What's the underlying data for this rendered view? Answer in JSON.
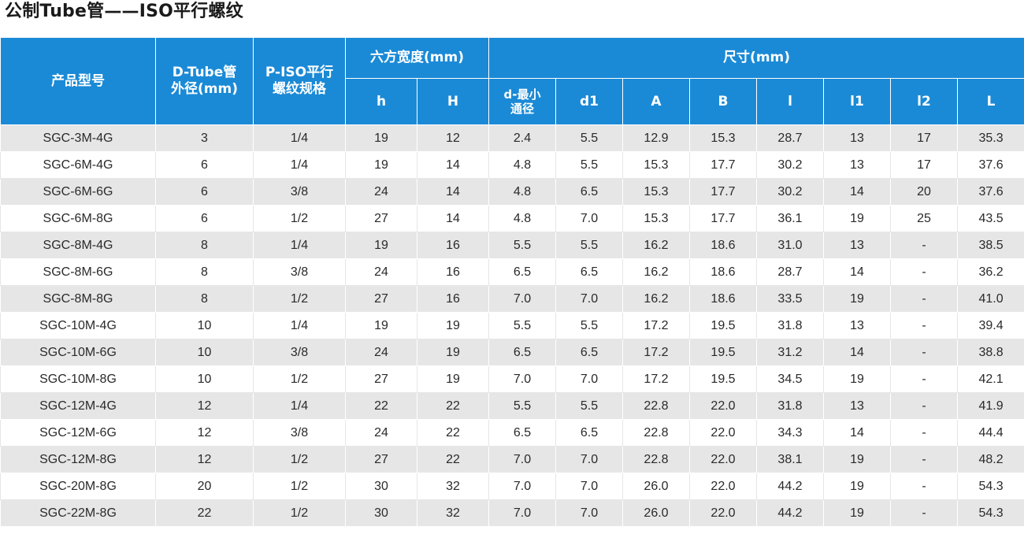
{
  "title": "公制Tube管——ISO平行螺纹",
  "headers": {
    "model": "产品型号",
    "tube_line1": "D-Tube管",
    "tube_line2": "外径(mm)",
    "thread_line1": "P-ISO平行",
    "thread_line2": "螺纹规格",
    "hex_group": "六方宽度(mm)",
    "dims_group": "尺寸(mm)",
    "h": "h",
    "H": "H",
    "d_line1": "d-最小",
    "d_line2": "通径",
    "d1": "d1",
    "A": "A",
    "B": "B",
    "l": "l",
    "l1": "l1",
    "l2": "l2",
    "L": "L"
  },
  "rows": [
    [
      "SGC-3M-4G",
      "3",
      "1/4",
      "19",
      "12",
      "2.4",
      "5.5",
      "12.9",
      "15.3",
      "28.7",
      "13",
      "17",
      "35.3"
    ],
    [
      "SGC-6M-4G",
      "6",
      "1/4",
      "19",
      "14",
      "4.8",
      "5.5",
      "15.3",
      "17.7",
      "30.2",
      "13",
      "17",
      "37.6"
    ],
    [
      "SGC-6M-6G",
      "6",
      "3/8",
      "24",
      "14",
      "4.8",
      "6.5",
      "15.3",
      "17.7",
      "30.2",
      "14",
      "20",
      "37.6"
    ],
    [
      "SGC-6M-8G",
      "6",
      "1/2",
      "27",
      "14",
      "4.8",
      "7.0",
      "15.3",
      "17.7",
      "36.1",
      "19",
      "25",
      "43.5"
    ],
    [
      "SGC-8M-4G",
      "8",
      "1/4",
      "19",
      "16",
      "5.5",
      "5.5",
      "16.2",
      "18.6",
      "31.0",
      "13",
      "-",
      "38.5"
    ],
    [
      "SGC-8M-6G",
      "8",
      "3/8",
      "24",
      "16",
      "6.5",
      "6.5",
      "16.2",
      "18.6",
      "28.7",
      "14",
      "-",
      "36.2"
    ],
    [
      "SGC-8M-8G",
      "8",
      "1/2",
      "27",
      "16",
      "7.0",
      "7.0",
      "16.2",
      "18.6",
      "33.5",
      "19",
      "-",
      "41.0"
    ],
    [
      "SGC-10M-4G",
      "10",
      "1/4",
      "19",
      "19",
      "5.5",
      "5.5",
      "17.2",
      "19.5",
      "31.8",
      "13",
      "-",
      "39.4"
    ],
    [
      "SGC-10M-6G",
      "10",
      "3/8",
      "24",
      "19",
      "6.5",
      "6.5",
      "17.2",
      "19.5",
      "31.2",
      "14",
      "-",
      "38.8"
    ],
    [
      "SGC-10M-8G",
      "10",
      "1/2",
      "27",
      "19",
      "7.0",
      "7.0",
      "17.2",
      "19.5",
      "34.5",
      "19",
      "-",
      "42.1"
    ],
    [
      "SGC-12M-4G",
      "12",
      "1/4",
      "22",
      "22",
      "5.5",
      "5.5",
      "22.8",
      "22.0",
      "31.8",
      "13",
      "-",
      "41.9"
    ],
    [
      "SGC-12M-6G",
      "12",
      "3/8",
      "24",
      "22",
      "6.5",
      "6.5",
      "22.8",
      "22.0",
      "34.3",
      "14",
      "-",
      "44.4"
    ],
    [
      "SGC-12M-8G",
      "12",
      "1/2",
      "27",
      "22",
      "7.0",
      "7.0",
      "22.8",
      "22.0",
      "38.1",
      "19",
      "-",
      "48.2"
    ],
    [
      "SGC-20M-8G",
      "20",
      "1/2",
      "30",
      "32",
      "7.0",
      "7.0",
      "26.0",
      "22.0",
      "44.2",
      "19",
      "-",
      "54.3"
    ],
    [
      "SGC-22M-8G",
      "22",
      "1/2",
      "30",
      "32",
      "7.0",
      "7.0",
      "26.0",
      "22.0",
      "44.2",
      "19",
      "-",
      "54.3"
    ]
  ],
  "colors": {
    "header_bg": "#1b8ad6",
    "header_text": "#ffffff",
    "row_alt_bg": "#e6e6e6",
    "row_bg": "#ffffff"
  }
}
